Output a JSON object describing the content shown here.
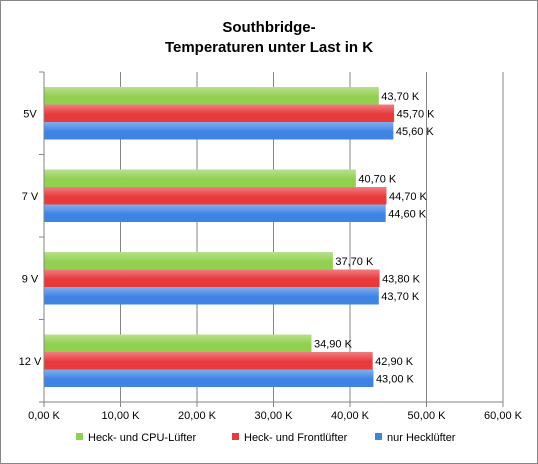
{
  "chart_data": {
    "type": "bar",
    "orientation": "horizontal",
    "title_lines": [
      "Southbridge-",
      "Temperaturen unter Last in K"
    ],
    "categories": [
      "5V",
      "7 V",
      "9 V",
      "12 V"
    ],
    "series": [
      {
        "name": "Heck- und CPU-Lüfter",
        "color": "#92d050",
        "values": [
          43.7,
          40.7,
          37.7,
          34.9
        ],
        "labels": [
          "43,70 K",
          "40,70 K",
          "37,70 K",
          "34,90 K"
        ]
      },
      {
        "name": "Heck- und Frontlüfter",
        "color": "#e8393b",
        "values": [
          45.7,
          44.7,
          43.8,
          42.9
        ],
        "labels": [
          "45,70 K",
          "44,70 K",
          "43,80 K",
          "42,90 K"
        ]
      },
      {
        "name": "nur Hecklüfter",
        "color": "#3f84e5",
        "values": [
          45.6,
          44.6,
          43.7,
          43.0
        ],
        "labels": [
          "45,60 K",
          "44,60 K",
          "43,70 K",
          "43,00 K"
        ]
      }
    ],
    "xlim": [
      0,
      60
    ],
    "x_ticks": [
      0,
      10,
      20,
      30,
      40,
      50,
      60
    ],
    "x_tick_labels": [
      "0,00 K",
      "10,00 K",
      "20,00 K",
      "30,00 K",
      "40,00 K",
      "50,00 K",
      "60,00 K"
    ],
    "grid": true,
    "legend_position": "bottom"
  }
}
